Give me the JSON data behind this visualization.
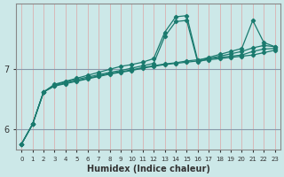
{
  "xlabel": "Humidex (Indice chaleur)",
  "ylabel": "",
  "background_color": "#cce8e8",
  "grid_color": "#aacccc",
  "line_color": "#1a7a6e",
  "x_values": [
    0,
    1,
    2,
    3,
    4,
    5,
    6,
    7,
    8,
    9,
    10,
    11,
    12,
    13,
    14,
    15,
    16,
    17,
    18,
    19,
    20,
    21,
    22,
    23
  ],
  "series": [
    [
      5.75,
      6.08,
      6.62,
      6.72,
      6.76,
      6.8,
      6.84,
      6.88,
      6.92,
      6.95,
      6.98,
      7.02,
      7.05,
      7.08,
      7.1,
      7.12,
      7.14,
      7.16,
      7.18,
      7.2,
      7.22,
      7.24,
      7.28,
      7.32
    ],
    [
      5.75,
      6.08,
      6.62,
      6.73,
      6.77,
      6.81,
      6.85,
      6.89,
      6.93,
      6.96,
      6.99,
      7.03,
      7.06,
      7.09,
      7.11,
      7.14,
      7.16,
      7.18,
      7.2,
      7.22,
      7.24,
      7.3,
      7.34,
      7.35
    ],
    [
      5.75,
      6.08,
      6.62,
      6.74,
      6.79,
      6.83,
      6.87,
      6.91,
      6.95,
      6.98,
      7.02,
      7.06,
      7.1,
      7.55,
      7.8,
      7.82,
      7.12,
      7.18,
      7.22,
      7.26,
      7.3,
      7.36,
      7.4,
      7.38
    ],
    [
      5.75,
      6.08,
      6.62,
      6.75,
      6.8,
      6.85,
      6.9,
      6.95,
      7.0,
      7.05,
      7.08,
      7.12,
      7.18,
      7.62,
      7.88,
      7.9,
      7.15,
      7.2,
      7.25,
      7.3,
      7.35,
      7.82,
      7.45,
      7.38
    ]
  ],
  "ylim": [
    5.65,
    8.1
  ],
  "yticks": [
    6,
    7
  ],
  "xlim": [
    -0.5,
    23.5
  ]
}
